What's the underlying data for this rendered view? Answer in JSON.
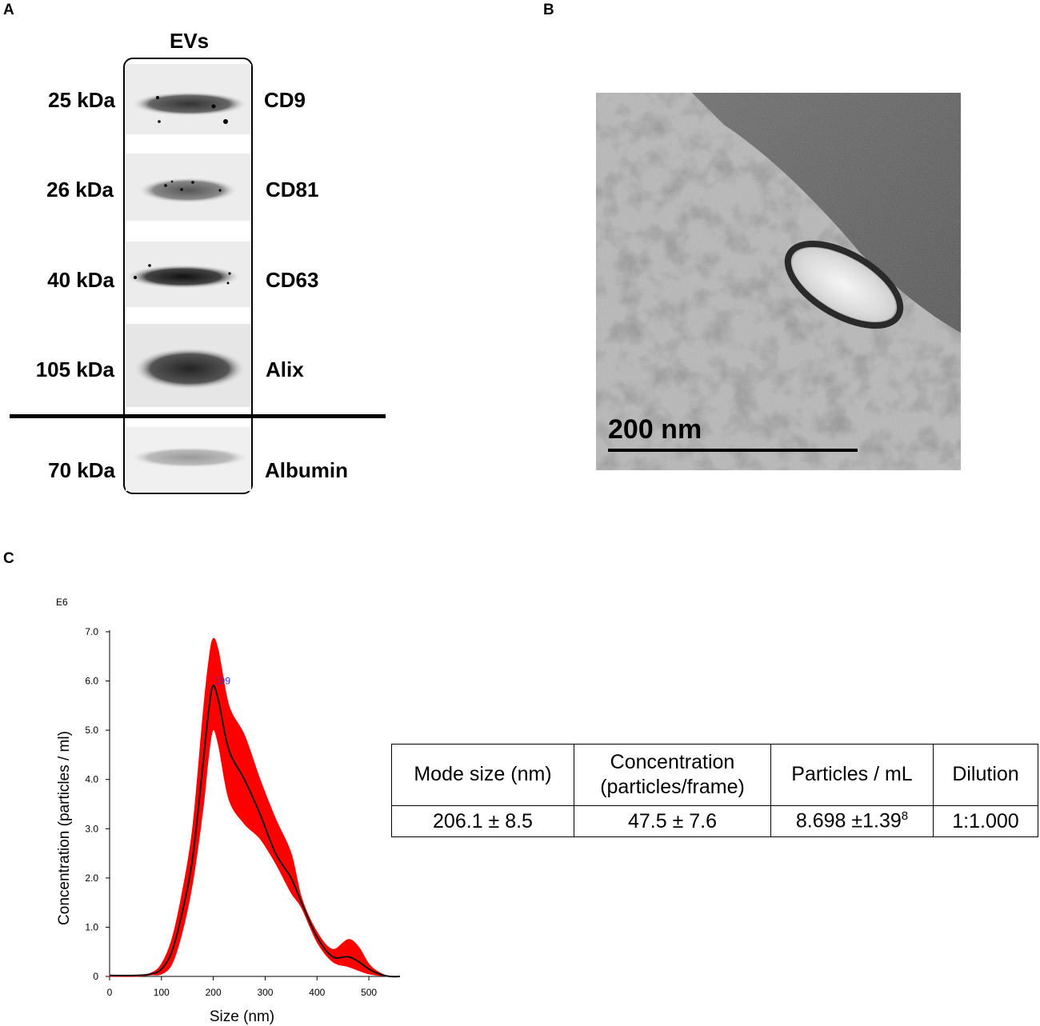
{
  "panels": {
    "a": "A",
    "b": "B",
    "c": "C"
  },
  "blot": {
    "group_label": "EVs",
    "rows": [
      {
        "mw": "25 kDa",
        "marker": "CD9"
      },
      {
        "mw": "26 kDa",
        "marker": "CD81"
      },
      {
        "mw": "40 kDa",
        "marker": "CD63"
      },
      {
        "mw": "105 kDa",
        "marker": "Alix"
      },
      {
        "mw": "70 kDa",
        "marker": "Albumin"
      }
    ]
  },
  "tem": {
    "scale_label": "200 nm"
  },
  "table": {
    "headers": [
      "Mode size (nm)",
      "Concentration (particles/frame)",
      "Particles / mL",
      "Dilution"
    ],
    "header_line1": [
      "Mode size (nm)",
      "Concentration",
      "Particles / mL",
      "Dilution"
    ],
    "header_line2": [
      "",
      "(particles/frame)",
      "",
      ""
    ],
    "values": [
      "206.1 ± 8.5",
      "47.5 ± 7.6",
      "8.698 ±1.39",
      "1:1.000"
    ],
    "particles_superscript": "8"
  },
  "chart_data": {
    "type": "area",
    "xlabel": "Size (nm)",
    "ylabel": "Concentration (particles / ml)",
    "y_multiplier": "E6",
    "xlim": [
      0,
      560
    ],
    "ylim": [
      0,
      7.0
    ],
    "x_ticks": [
      "0",
      "100",
      "200",
      "300",
      "400",
      "500"
    ],
    "y_ticks": [
      "0",
      "1.0",
      "2.0",
      "3.0",
      "4.0",
      "5.0",
      "6.0",
      "7.0"
    ],
    "peak_label": "199",
    "colors": {
      "band": "#ff0000",
      "mean": "#111111",
      "peak_label": "#3333cc"
    },
    "series": [
      {
        "name": "mean",
        "x": [
          0,
          50,
          80,
          100,
          120,
          140,
          160,
          180,
          190,
          199,
          210,
          230,
          260,
          290,
          320,
          350,
          370,
          400,
          430,
          460,
          480,
          500,
          520,
          540,
          560
        ],
        "y": [
          0.02,
          0.02,
          0.05,
          0.15,
          0.5,
          1.3,
          2.4,
          4.3,
          5.3,
          5.9,
          5.6,
          4.6,
          4.0,
          3.3,
          2.5,
          2.0,
          1.5,
          0.8,
          0.4,
          0.4,
          0.3,
          0.15,
          0.05,
          0.0,
          0.0
        ]
      },
      {
        "name": "upper",
        "x": [
          0,
          50,
          80,
          100,
          120,
          140,
          160,
          180,
          190,
          199,
          210,
          230,
          260,
          290,
          320,
          350,
          370,
          400,
          430,
          460,
          480,
          500,
          520,
          540,
          560
        ],
        "y": [
          0.02,
          0.02,
          0.07,
          0.25,
          0.75,
          1.7,
          3.0,
          5.3,
          6.3,
          6.85,
          6.6,
          5.5,
          4.9,
          4.0,
          3.2,
          2.5,
          1.6,
          0.9,
          0.55,
          0.75,
          0.6,
          0.25,
          0.08,
          0.0,
          0.0
        ]
      },
      {
        "name": "lower",
        "x": [
          0,
          50,
          80,
          100,
          120,
          140,
          160,
          180,
          190,
          199,
          210,
          230,
          260,
          290,
          320,
          350,
          370,
          400,
          430,
          460,
          480,
          500,
          520,
          540,
          560
        ],
        "y": [
          0.0,
          0.0,
          0.03,
          0.05,
          0.25,
          0.9,
          1.9,
          3.4,
          4.4,
          5.0,
          4.7,
          3.6,
          3.1,
          2.8,
          2.3,
          1.7,
          1.4,
          0.7,
          0.3,
          0.2,
          0.12,
          0.05,
          0.02,
          0.0,
          0.0
        ]
      }
    ]
  }
}
